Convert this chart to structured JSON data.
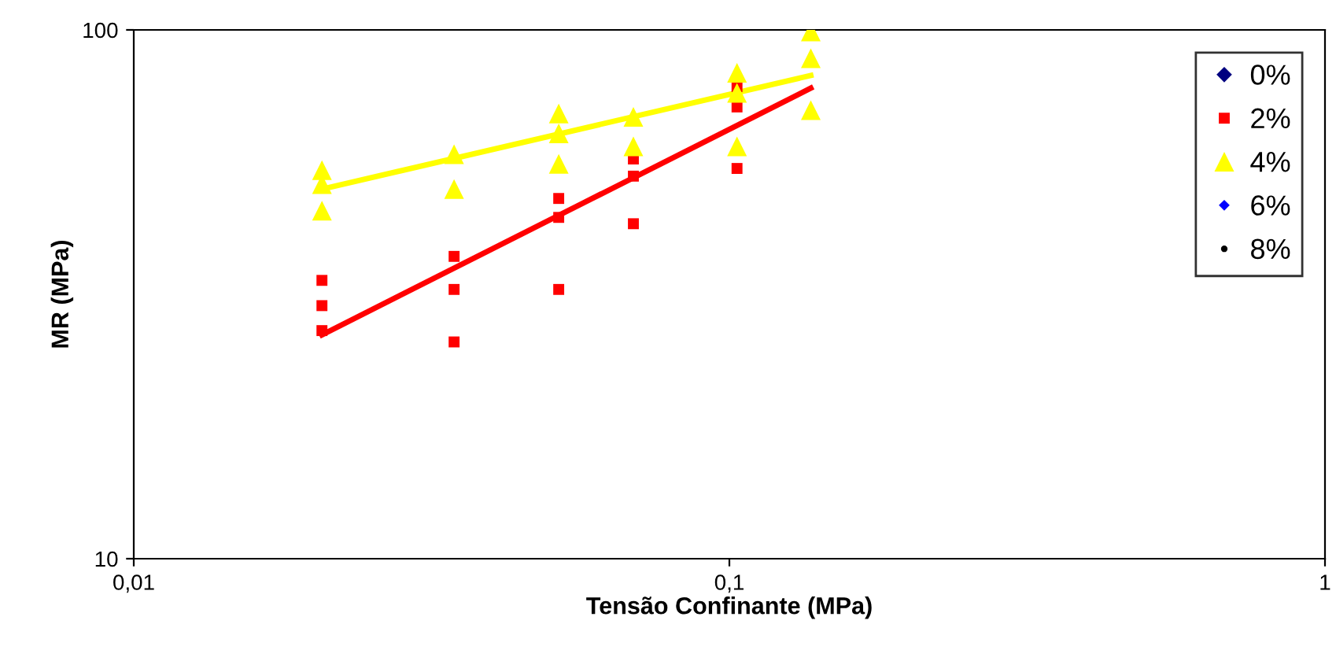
{
  "chart_data": {
    "type": "scatter",
    "xlabel": "Tensão Confinante (MPa)",
    "ylabel": "MR (MPa)",
    "log": "xy",
    "xlim": [
      0.01,
      1
    ],
    "ylim": [
      10,
      100
    ],
    "xticks": [
      {
        "value": 0.01,
        "label": "0,01"
      },
      {
        "value": 0.1,
        "label": "0,1"
      },
      {
        "value": 1,
        "label": "1"
      }
    ],
    "yticks": [
      10,
      100
    ],
    "grid": false,
    "legend": "top right",
    "series": [
      {
        "name": "0%",
        "color": "#000080",
        "marker": "diamond"
      },
      {
        "name": "2%",
        "color": "#ff0000",
        "marker": "square",
        "x": [
          0.0207,
          0.0207,
          0.0207,
          0.0345,
          0.0345,
          0.0345,
          0.0517,
          0.0517,
          0.0517,
          0.069,
          0.069,
          0.069,
          0.103,
          0.103,
          0.103
        ],
        "values": [
          33.6,
          30.1,
          27.0,
          37.3,
          32.3,
          25.7,
          48.0,
          44.2,
          32.3,
          57.0,
          52.9,
          43.0,
          78.1,
          71.5,
          54.7
        ]
      },
      {
        "name": "4%",
        "color": "#ffff00",
        "marker": "triangle",
        "x": [
          0.0207,
          0.0207,
          0.0207,
          0.0345,
          0.0345,
          0.0517,
          0.0517,
          0.0517,
          0.069,
          0.069,
          0.103,
          0.103,
          0.103,
          0.137,
          0.137,
          0.137
        ],
        "values": [
          54.3,
          51.1,
          45.5,
          58.2,
          50.0,
          69.5,
          63.7,
          55.8,
          68.5,
          60.2,
          83.0,
          76.0,
          60.2,
          99.3,
          88.4,
          70.5
        ]
      },
      {
        "name": "6%",
        "color": "#0000ff",
        "marker": "diamond"
      },
      {
        "name": "8%",
        "color": "#000000",
        "marker": "circle"
      },
      {
        "type": "line",
        "color": "#ff0000",
        "marker": "none",
        "x": [
          0.0207,
          0.137
        ],
        "values": [
          26.5,
          77.6
        ]
      },
      {
        "type": "line",
        "color": "#ffff00",
        "marker": "none",
        "x": [
          0.0207,
          0.137
        ],
        "values": [
          50.0,
          82.0
        ]
      }
    ]
  }
}
